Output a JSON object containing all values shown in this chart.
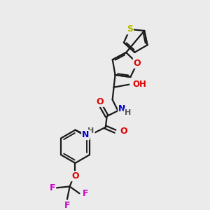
{
  "background_color": "#ebebeb",
  "bond_color": "#1a1a1a",
  "bond_width": 1.6,
  "atom_colors": {
    "S": "#b8b800",
    "O": "#dd0000",
    "N": "#0000cc",
    "F": "#cc00cc",
    "C": "#1a1a1a",
    "H": "#555555"
  },
  "figsize": [
    3.0,
    3.0
  ],
  "dpi": 100
}
